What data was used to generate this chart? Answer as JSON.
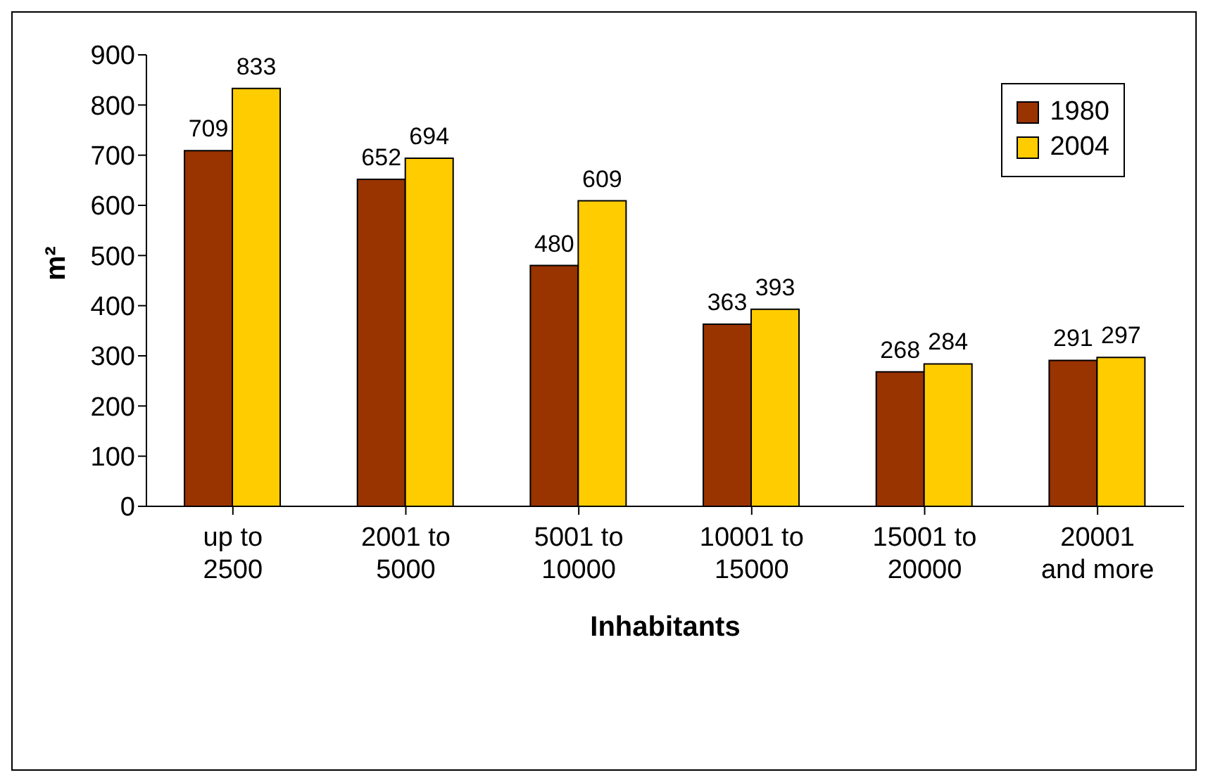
{
  "chart_data": {
    "type": "bar",
    "xlabel": "Inhabitants",
    "ylabel": "m²",
    "categories": [
      "up to 2500",
      "2001 to 5000",
      "5001 to 10000",
      "10001 to 15000",
      "15001 to 20000",
      "20001 and more"
    ],
    "series": [
      {
        "name": "1980",
        "color": "#993300",
        "values": [
          709,
          652,
          480,
          363,
          268,
          291
        ]
      },
      {
        "name": "2004",
        "color": "#ffcc00",
        "values": [
          833,
          694,
          609,
          393,
          284,
          297
        ]
      }
    ],
    "ylim": [
      0,
      900
    ],
    "yticks": [
      0,
      100,
      200,
      300,
      400,
      500,
      600,
      700,
      800,
      900
    ],
    "grid": false,
    "legend": "top right",
    "data_labels": true
  }
}
